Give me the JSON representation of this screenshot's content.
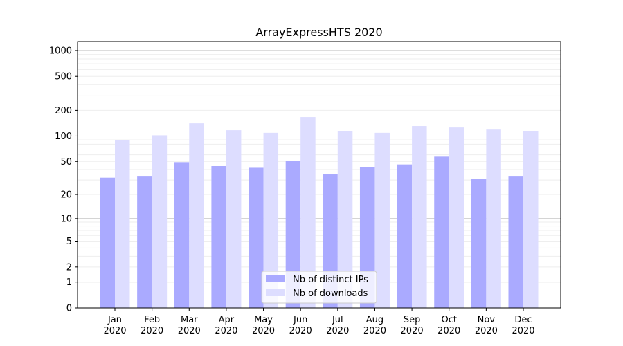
{
  "chart_data": {
    "type": "bar",
    "title": "ArrayExpressHTS 2020",
    "xlabel": "",
    "ylabel": "",
    "yscale": "symlog (log10(1+y))",
    "ylim": [
      0,
      1300
    ],
    "yticks": [
      0,
      1,
      2,
      5,
      10,
      20,
      50,
      100,
      200,
      500,
      1000
    ],
    "grid": true,
    "legend_placement": "lower-center",
    "categories": [
      "Jan\n2020",
      "Feb\n2020",
      "Mar\n2020",
      "Apr\n2020",
      "May\n2020",
      "Jun\n2020",
      "Jul\n2020",
      "Aug\n2020",
      "Sep\n2020",
      "Oct\n2020",
      "Nov\n2020",
      "Dec\n2020"
    ],
    "series": [
      {
        "name": "Nb of distinct IPs",
        "color": "#aaaaff",
        "values": [
          32,
          33,
          49,
          44,
          42,
          51,
          35,
          43,
          46,
          57,
          31,
          33
        ]
      },
      {
        "name": "Nb of downloads",
        "color": "#ddddff",
        "values": [
          90,
          102,
          141,
          117,
          109,
          167,
          113,
          109,
          131,
          126,
          119,
          115
        ]
      }
    ]
  }
}
